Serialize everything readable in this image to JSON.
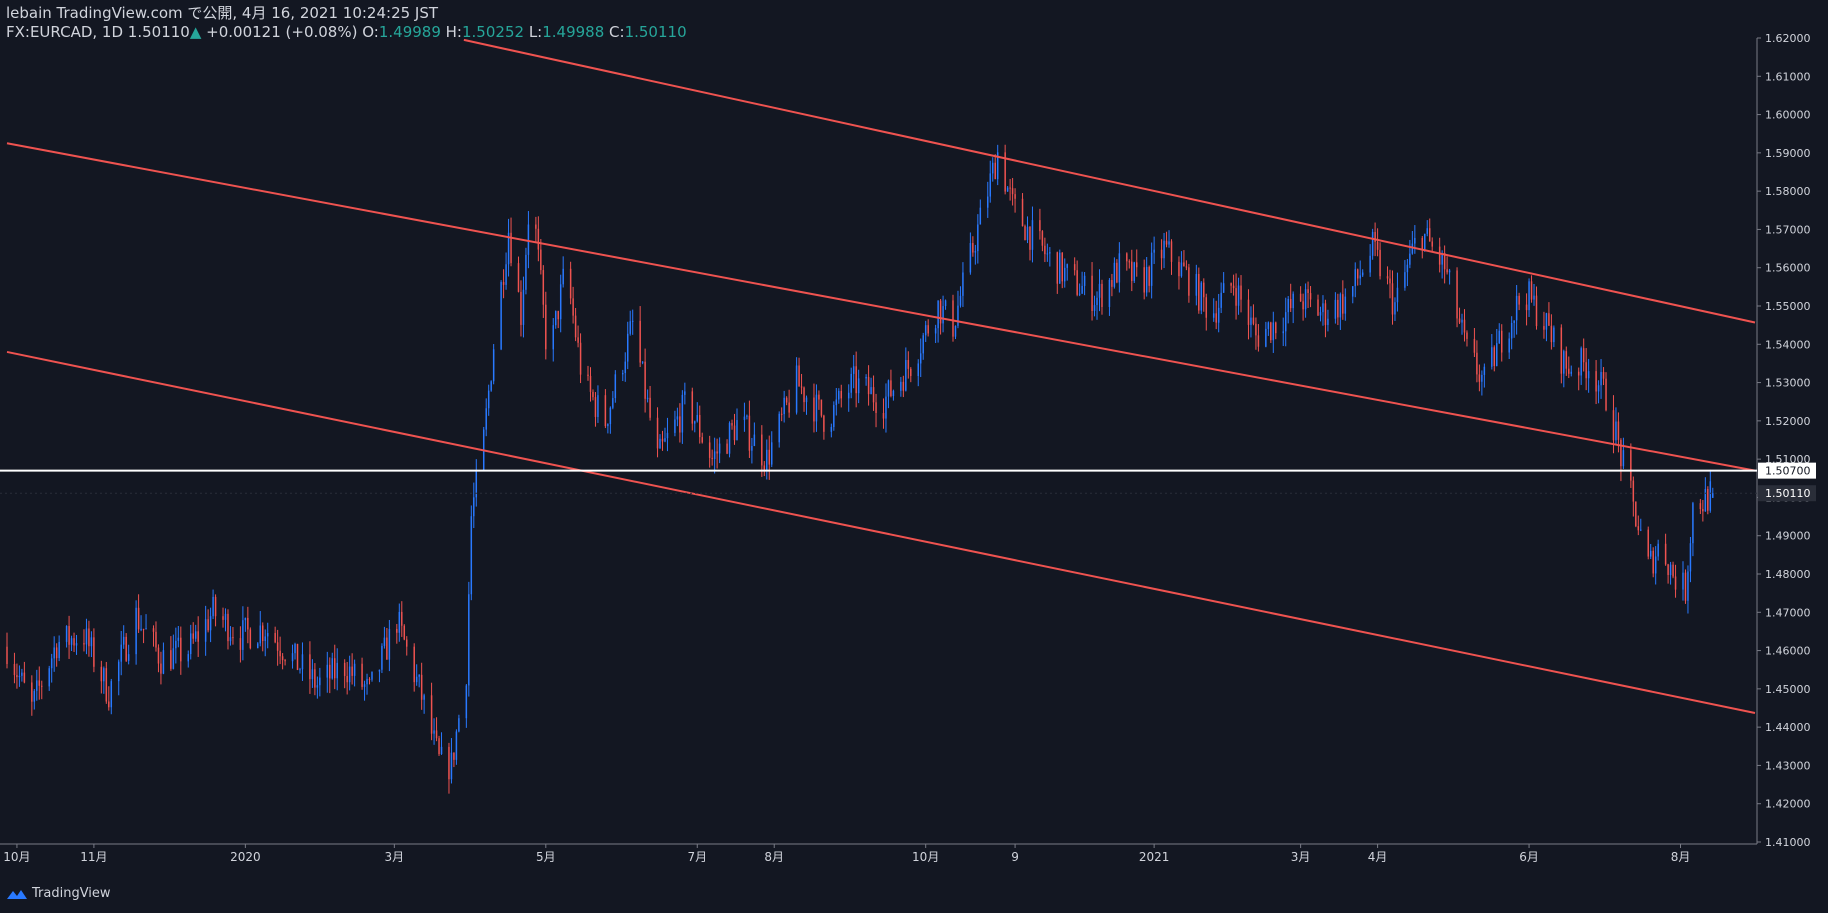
{
  "header": {
    "publisher": "lebain TradingView.com で公開, 4月 16, 2021 10:24:25 JST",
    "symbol": "FX:EURCAD, 1D",
    "last": "1.50110",
    "change_arrow": "▲",
    "change": "+0.00121 (+0.08%)",
    "o_label": "O:",
    "o": "1.49989",
    "h_label": "H:",
    "h": "1.50252",
    "l_label": "L:",
    "l": "1.49988",
    "c_label": "C:",
    "c": "1.50110"
  },
  "footer": {
    "brand": "TradingView",
    "icon": "tradingview-logo-icon"
  },
  "colors": {
    "background": "#131722",
    "up": "#2979ff",
    "down": "#ef5350",
    "trendline": "#ef5350",
    "hline": "#ffffff",
    "axis_text": "#d1d4dc",
    "header_value": "#26a69a"
  },
  "chart_data": {
    "type": "candlestick",
    "symbol": "FX:EURCAD",
    "interval": "1D",
    "ylim": [
      1.41,
      1.62
    ],
    "y_ticks": [
      "1.41000",
      "1.42000",
      "1.43000",
      "1.44000",
      "1.45000",
      "1.46000",
      "1.47000",
      "1.48000",
      "1.49000",
      "1.50000",
      "1.51000",
      "1.52000",
      "1.53000",
      "1.54000",
      "1.55000",
      "1.56000",
      "1.57000",
      "1.58000",
      "1.59000",
      "1.60000",
      "1.61000",
      "1.62000"
    ],
    "x_range": [
      "2019-09-27",
      "2021-08-31"
    ],
    "x_ticks": [
      {
        "date": "2019-10-01",
        "label": "10月"
      },
      {
        "date": "2019-11-01",
        "label": "11月"
      },
      {
        "date": "2020-01-01",
        "label": "2020"
      },
      {
        "date": "2020-03-01",
        "label": "3月"
      },
      {
        "date": "2020-05-01",
        "label": "5月"
      },
      {
        "date": "2020-07-01",
        "label": "7月"
      },
      {
        "date": "2020-08-01",
        "label": "8月"
      },
      {
        "date": "2020-10-01",
        "label": "10月"
      },
      {
        "date": "2020-11-06",
        "label": "9"
      },
      {
        "date": "2021-01-01",
        "label": "2021"
      },
      {
        "date": "2021-03-01",
        "label": "3月"
      },
      {
        "date": "2021-04-01",
        "label": "4月"
      },
      {
        "date": "2021-06-01",
        "label": "6月"
      },
      {
        "date": "2021-08-01",
        "label": "8月"
      }
    ],
    "price_labels": [
      {
        "value": 1.507,
        "text": "1.50700",
        "style": "hline"
      },
      {
        "value": 1.5011,
        "text": "1.50110",
        "style": "last"
      }
    ],
    "trendlines": [
      {
        "name": "upper-channel-line",
        "x1": "2020-03-29",
        "y1": 1.6195,
        "x2": "2021-08-31",
        "y2": 1.5457
      },
      {
        "name": "middle-channel-line",
        "x1": "2019-09-27",
        "y1": 1.5925,
        "x2": "2021-08-31",
        "y2": 1.507
      },
      {
        "name": "lower-channel-line",
        "x1": "2019-09-27",
        "y1": 1.538,
        "x2": "2021-08-31",
        "y2": 1.4437
      }
    ],
    "hlines": [
      {
        "name": "horizontal-line",
        "value": 1.507
      }
    ],
    "closes": [
      [
        "2019-09-27",
        1.461
      ],
      [
        "2019-10-07",
        1.445
      ],
      [
        "2019-10-17",
        1.462
      ],
      [
        "2019-10-28",
        1.464
      ],
      [
        "2019-11-07",
        1.449
      ],
      [
        "2019-11-18",
        1.469
      ],
      [
        "2019-11-28",
        1.458
      ],
      [
        "2019-12-09",
        1.46
      ],
      [
        "2019-12-19",
        1.47
      ],
      [
        "2019-12-30",
        1.464
      ],
      [
        "2020-01-09",
        1.466
      ],
      [
        "2020-01-20",
        1.458
      ],
      [
        "2020-01-30",
        1.451
      ],
      [
        "2020-02-10",
        1.456
      ],
      [
        "2020-02-20",
        1.449
      ],
      [
        "2020-03-02",
        1.468
      ],
      [
        "2020-03-12",
        1.448
      ],
      [
        "2020-03-19",
        1.431
      ],
      [
        "2020-03-24",
        1.43
      ],
      [
        "2020-03-30",
        1.455
      ],
      [
        "2020-04-01",
        1.495
      ],
      [
        "2020-04-06",
        1.515
      ],
      [
        "2020-04-10",
        1.54
      ],
      [
        "2020-04-16",
        1.57
      ],
      [
        "2020-04-21",
        1.548
      ],
      [
        "2020-04-25",
        1.582
      ],
      [
        "2020-05-02",
        1.535
      ],
      [
        "2020-05-09",
        1.56
      ],
      [
        "2020-05-16",
        1.53
      ],
      [
        "2020-05-25",
        1.52
      ],
      [
        "2020-06-05",
        1.545
      ],
      [
        "2020-06-15",
        1.51
      ],
      [
        "2020-06-27",
        1.525
      ],
      [
        "2020-07-07",
        1.51
      ],
      [
        "2020-07-18",
        1.52
      ],
      [
        "2020-07-29",
        1.51
      ],
      [
        "2020-08-10",
        1.53
      ],
      [
        "2020-08-22",
        1.52
      ],
      [
        "2020-09-02",
        1.53
      ],
      [
        "2020-09-14",
        1.525
      ],
      [
        "2020-09-25",
        1.535
      ],
      [
        "2020-10-06",
        1.55
      ],
      [
        "2020-10-12",
        1.545
      ],
      [
        "2020-10-18",
        1.56
      ],
      [
        "2020-10-24",
        1.575
      ],
      [
        "2020-10-30",
        1.59
      ],
      [
        "2020-11-05",
        1.576
      ],
      [
        "2020-11-11",
        1.57
      ],
      [
        "2020-11-20",
        1.562
      ],
      [
        "2020-11-30",
        1.556
      ],
      [
        "2020-12-09",
        1.552
      ],
      [
        "2020-12-18",
        1.56
      ],
      [
        "2020-12-27",
        1.556
      ],
      [
        "2021-01-05",
        1.565
      ],
      [
        "2021-01-14",
        1.558
      ],
      [
        "2021-01-24",
        1.548
      ],
      [
        "2021-02-02",
        1.556
      ],
      [
        "2021-02-11",
        1.542
      ],
      [
        "2021-02-20",
        1.546
      ],
      [
        "2021-03-01",
        1.552
      ],
      [
        "2021-03-10",
        1.548
      ],
      [
        "2021-03-20",
        1.552
      ],
      [
        "2021-03-30",
        1.565
      ],
      [
        "2021-04-08",
        1.55
      ],
      [
        "2021-04-18",
        1.57
      ],
      [
        "2021-04-28",
        1.56
      ],
      [
        "2021-05-07",
        1.538
      ],
      [
        "2021-05-14",
        1.53
      ],
      [
        "2021-05-21",
        1.542
      ],
      [
        "2021-05-30",
        1.554
      ],
      [
        "2021-06-07",
        1.546
      ],
      [
        "2021-06-16",
        1.534
      ],
      [
        "2021-06-25",
        1.535
      ],
      [
        "2021-07-03",
        1.525
      ],
      [
        "2021-07-09",
        1.508
      ],
      [
        "2021-07-14",
        1.495
      ],
      [
        "2021-07-19",
        1.482
      ],
      [
        "2021-07-24",
        1.488
      ],
      [
        "2021-07-29",
        1.48
      ],
      [
        "2021-08-01",
        1.477
      ],
      [
        "2021-08-03",
        1.476
      ],
      [
        "2021-08-06",
        1.498
      ],
      [
        "2021-08-10",
        1.499
      ],
      [
        "2021-08-14",
        1.5011
      ]
    ]
  }
}
